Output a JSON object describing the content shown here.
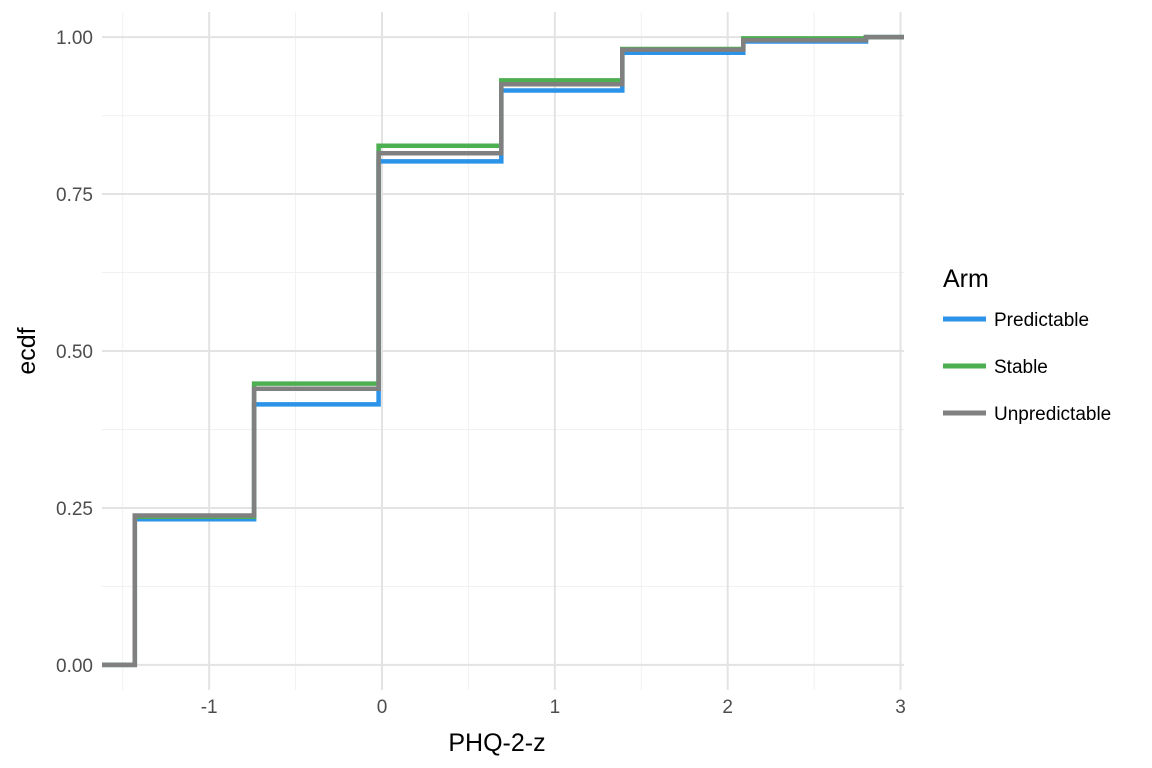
{
  "chart_data": {
    "type": "line",
    "step": true,
    "title": "",
    "xlabel": "PHQ-2-z",
    "ylabel": "ecdf",
    "xlim": [
      -1.62,
      3.02
    ],
    "ylim": [
      -0.04,
      1.04
    ],
    "x_ticks": [
      -1,
      0,
      1,
      2,
      3
    ],
    "x_tick_labels": [
      "-1",
      "0",
      "1",
      "2",
      "3"
    ],
    "y_ticks": [
      0,
      0.25,
      0.5,
      0.75,
      1
    ],
    "y_tick_labels": [
      "0.00",
      "0.25",
      "0.50",
      "0.75",
      "1.00"
    ],
    "grid": true,
    "legend": {
      "title": "Arm",
      "position": "right"
    },
    "series": [
      {
        "name": "Predictable",
        "color": "#2b93e8",
        "x": [
          -1.62,
          -1.43,
          -0.74,
          -0.02,
          0.69,
          1.39,
          2.09,
          2.8,
          3.02
        ],
        "y": [
          0,
          0.232,
          0.415,
          0.802,
          0.915,
          0.975,
          0.993,
          1.0,
          1.0
        ]
      },
      {
        "name": "Stable",
        "color": "#4caf50",
        "x": [
          -1.62,
          -1.43,
          -0.74,
          -0.02,
          0.69,
          1.39,
          2.09,
          2.8,
          3.02
        ],
        "y": [
          0,
          0.236,
          0.448,
          0.827,
          0.931,
          0.981,
          0.998,
          1.0,
          1.0
        ]
      },
      {
        "name": "Unpredictable",
        "color": "#808080",
        "x": [
          -1.62,
          -1.43,
          -0.74,
          -0.02,
          0.69,
          1.39,
          2.09,
          2.8,
          3.02
        ],
        "y": [
          0,
          0.238,
          0.44,
          0.815,
          0.925,
          0.98,
          0.995,
          1.0,
          1.0
        ]
      }
    ]
  }
}
